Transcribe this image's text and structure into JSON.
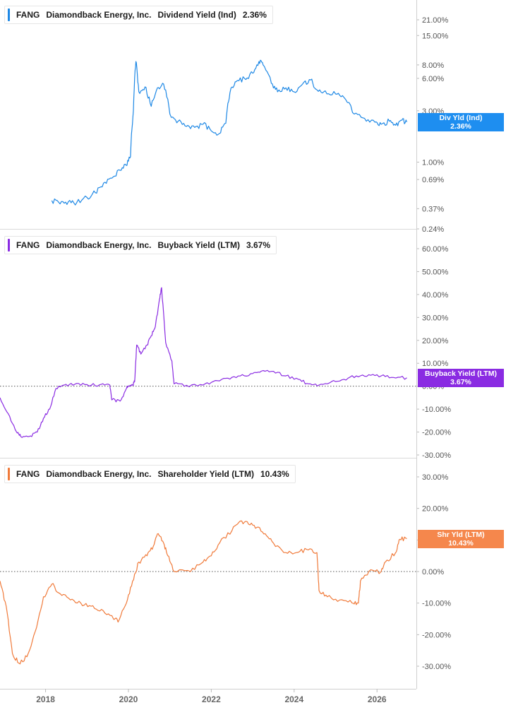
{
  "chart_data": [
    {
      "type": "line",
      "ticker": "FANG",
      "company": "Diamondback Energy, Inc.",
      "metric": "Dividend Yield (Ind)",
      "current_value": "2.36%",
      "flag_label": "Div Yld (Ind)",
      "flag_value": "2.36%",
      "color": "#1e88e5",
      "yscale": "log",
      "ylim": [
        0.24,
        26
      ],
      "yticks": [
        21.0,
        15.0,
        8.0,
        6.0,
        3.0,
        1.0,
        0.69,
        0.37,
        0.24
      ],
      "ytick_labels": [
        "21.00%",
        "15.00%",
        "8.00%",
        "6.00%",
        "3.00%",
        "1.00%",
        "0.69%",
        "0.37%",
        "0.24%"
      ],
      "zero_line": false,
      "series": [
        {
          "x": [
            2018.15,
            2018.35,
            2018.55,
            2018.75,
            2019.0,
            2019.2,
            2019.4,
            2019.6,
            2019.8,
            2019.95,
            2020.05,
            2020.12,
            2020.18,
            2020.25,
            2020.4,
            2020.55,
            2020.7,
            2020.85,
            2021.0,
            2021.2,
            2021.4,
            2021.6,
            2021.8,
            2022.0,
            2022.2,
            2022.35,
            2022.45,
            2022.6,
            2022.8,
            2023.0,
            2023.15,
            2023.25,
            2023.45,
            2023.6,
            2023.8,
            2024.0,
            2024.2,
            2024.4,
            2024.55,
            2024.75,
            2025.0,
            2025.2,
            2025.45,
            2025.7,
            2025.95,
            2026.1,
            2026.3,
            2026.45,
            2026.6,
            2026.72
          ],
          "y": [
            0.44,
            0.41,
            0.43,
            0.42,
            0.47,
            0.52,
            0.64,
            0.71,
            0.84,
            0.93,
            1.12,
            3.0,
            8.6,
            4.5,
            5.0,
            3.3,
            4.9,
            5.3,
            2.8,
            2.4,
            2.15,
            2.1,
            2.25,
            1.95,
            1.85,
            2.3,
            4.4,
            5.6,
            6.0,
            6.7,
            8.6,
            8.0,
            5.4,
            4.5,
            4.9,
            4.5,
            5.3,
            5.8,
            4.7,
            4.6,
            4.3,
            4.0,
            2.8,
            2.55,
            2.35,
            2.25,
            2.4,
            2.2,
            2.45,
            2.36
          ]
        }
      ]
    },
    {
      "type": "line",
      "ticker": "FANG",
      "company": "Diamondback Energy, Inc.",
      "metric": "Buyback Yield (LTM)",
      "current_value": "3.67%",
      "flag_label": "Buyback Yield (LTM)",
      "flag_value": "3.67%",
      "color": "#8a2be2",
      "yscale": "linear",
      "ylim": [
        -30,
        60
      ],
      "yticks": [
        60,
        50,
        40,
        30,
        20,
        10,
        0,
        -10,
        -20,
        -30
      ],
      "ytick_labels": [
        "60.00%",
        "50.00%",
        "40.00%",
        "30.00%",
        "20.00%",
        "10.00%",
        "0.00%",
        "-10.00%",
        "-20.00%",
        "-30.00%"
      ],
      "zero_line": true,
      "series": [
        {
          "x": [
            2016.9,
            2017.1,
            2017.3,
            2017.4,
            2017.6,
            2017.8,
            2017.95,
            2018.1,
            2018.25,
            2018.45,
            2018.7,
            2019.0,
            2019.3,
            2019.55,
            2019.6,
            2019.8,
            2019.95,
            2020.0,
            2020.1,
            2020.15,
            2020.2,
            2020.3,
            2020.45,
            2020.55,
            2020.65,
            2020.75,
            2020.8,
            2020.9,
            2021.05,
            2021.1,
            2021.4,
            2021.8,
            2022.1,
            2022.4,
            2022.7,
            2023.0,
            2023.2,
            2023.5,
            2023.8,
            2024.1,
            2024.35,
            2024.6,
            2024.9,
            2025.2,
            2025.5,
            2025.8,
            2026.1,
            2026.4,
            2026.72
          ],
          "y": [
            -5,
            -12,
            -20,
            -22,
            -22,
            -20,
            -14,
            -10,
            -1,
            0.5,
            0.8,
            0.7,
            0.6,
            0.5,
            -6,
            -6.5,
            -1,
            0,
            0.5,
            2,
            18,
            14,
            18,
            22,
            26,
            38,
            43,
            19,
            11,
            1,
            0.4,
            0.5,
            2.5,
            3.5,
            4.5,
            5.5,
            6.5,
            6.5,
            4.5,
            3,
            1,
            0.5,
            2,
            3,
            4.5,
            5,
            4.5,
            3.8,
            3.67
          ]
        }
      ]
    },
    {
      "type": "line",
      "ticker": "FANG",
      "company": "Diamondback Energy, Inc.",
      "metric": "Shareholder Yield (LTM)",
      "current_value": "10.43%",
      "flag_label": "Shr Yld (LTM)",
      "flag_value": "10.43%",
      "color": "#f07a3a",
      "flag_color": "#f5874c",
      "yscale": "linear",
      "ylim": [
        -30,
        30
      ],
      "yticks": [
        30,
        20,
        10,
        0,
        -10,
        -20,
        -30
      ],
      "ytick_labels": [
        "30.00%",
        "20.00%",
        "10.00%",
        "0.00%",
        "-10.00%",
        "-20.00%",
        "-30.00%"
      ],
      "zero_line": true,
      "xticks": [
        2018,
        2020,
        2022,
        2024,
        2026
      ],
      "xtick_labels": [
        "2018",
        "2020",
        "2022",
        "2024",
        "2026"
      ],
      "series": [
        {
          "x": [
            2016.9,
            2017.05,
            2017.2,
            2017.35,
            2017.55,
            2017.75,
            2017.95,
            2018.15,
            2018.35,
            2018.6,
            2018.85,
            2019.1,
            2019.35,
            2019.6,
            2019.75,
            2019.95,
            2020.1,
            2020.25,
            2020.45,
            2020.6,
            2020.72,
            2020.85,
            2020.95,
            2021.1,
            2021.5,
            2021.8,
            2022.0,
            2022.2,
            2022.5,
            2022.7,
            2022.9,
            2023.1,
            2023.3,
            2023.5,
            2023.8,
            2024.05,
            2024.3,
            2024.55,
            2024.6,
            2024.8,
            2025.1,
            2025.4,
            2025.55,
            2025.6,
            2025.8,
            2026.1,
            2026.2,
            2026.45,
            2026.55,
            2026.72
          ],
          "y": [
            -3,
            -11,
            -26,
            -29,
            -27,
            -19,
            -8,
            -4,
            -7,
            -9,
            -10,
            -11,
            -12,
            -14,
            -16,
            -10,
            -3,
            3,
            5,
            8,
            12,
            9,
            5,
            0,
            0,
            3,
            5,
            9,
            13,
            16,
            15,
            14,
            12,
            9,
            6,
            6,
            7,
            6,
            -6,
            -8,
            -9,
            -10,
            -10,
            -3,
            0,
            0,
            3,
            6,
            10.2,
            10.43
          ]
        }
      ]
    }
  ]
}
